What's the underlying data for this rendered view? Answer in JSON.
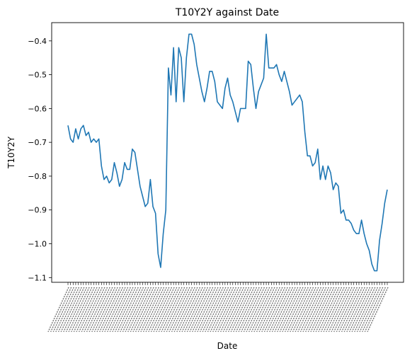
{
  "chart_data": {
    "type": "line",
    "title": "T10Y2Y against Date",
    "xlabel": "Date",
    "ylabel": "T10Y2Y",
    "ylim": [
      -1.114,
      -0.346
    ],
    "yticks": [
      -0.4,
      -0.5,
      -0.6,
      -0.7,
      -0.8,
      -0.9,
      -1.0,
      -1.1
    ],
    "ytick_labels": [
      "−0.4",
      "−0.5",
      "−0.6",
      "−0.7",
      "−0.8",
      "−0.9",
      "−1.0",
      "−1.1"
    ],
    "grid": false,
    "legend": "none",
    "color": "#1f77b4",
    "series": [
      {
        "values": [
          -0.65,
          -0.69,
          -0.7,
          -0.66,
          -0.69,
          -0.66,
          -0.65,
          -0.68,
          -0.67,
          -0.7,
          -0.69,
          -0.7,
          -0.69,
          -0.77,
          -0.81,
          -0.8,
          -0.82,
          -0.81,
          -0.76,
          -0.79,
          -0.83,
          -0.81,
          -0.76,
          -0.78,
          -0.78,
          -0.72,
          -0.73,
          -0.78,
          -0.83,
          -0.86,
          -0.89,
          -0.88,
          -0.81,
          -0.89,
          -0.91,
          -1.03,
          -1.07,
          -0.97,
          -0.9,
          -0.48,
          -0.56,
          -0.42,
          -0.58,
          -0.42,
          -0.45,
          -0.58,
          -0.45,
          -0.38,
          -0.38,
          -0.41,
          -0.47,
          -0.51,
          -0.55,
          -0.58,
          -0.54,
          -0.49,
          -0.49,
          -0.52,
          -0.58,
          -0.59,
          -0.6,
          -0.54,
          -0.51,
          -0.56,
          -0.58,
          -0.61,
          -0.64,
          -0.6,
          -0.6,
          -0.6,
          -0.46,
          -0.47,
          -0.54,
          -0.6,
          -0.55,
          -0.53,
          -0.51,
          -0.38,
          -0.48,
          -0.48,
          -0.48,
          -0.47,
          -0.5,
          -0.52,
          -0.49,
          -0.52,
          -0.55,
          -0.59,
          -0.58,
          -0.57,
          -0.56,
          -0.58,
          -0.67,
          -0.74,
          -0.74,
          -0.77,
          -0.76,
          -0.72,
          -0.81,
          -0.77,
          -0.81,
          -0.77,
          -0.79,
          -0.84,
          -0.82,
          -0.83,
          -0.91,
          -0.9,
          -0.93,
          -0.93,
          -0.94,
          -0.96,
          -0.97,
          -0.97,
          -0.93,
          -0.97,
          -1.0,
          -1.02,
          -1.06,
          -1.08,
          -1.08,
          -0.99,
          -0.94,
          -0.88,
          -0.84
        ]
      }
    ]
  }
}
